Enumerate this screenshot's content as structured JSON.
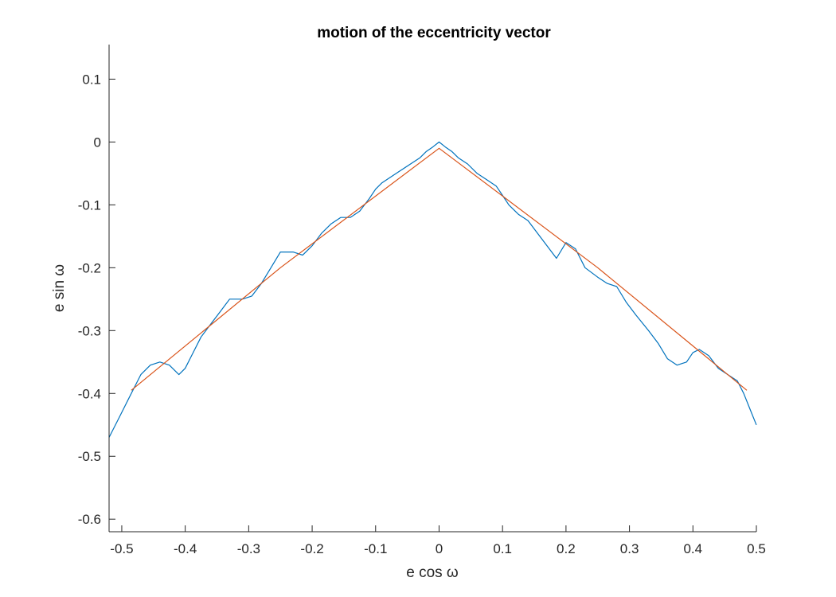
{
  "chart_data": {
    "type": "line",
    "title": "motion of the eccentricity vector",
    "xlabel": "e cos ω",
    "ylabel": "e sin ω",
    "xlim": [
      -0.52,
      0.5
    ],
    "ylim": [
      -0.62,
      0.155
    ],
    "xticks": [
      -0.5,
      -0.4,
      -0.3,
      -0.2,
      -0.1,
      0,
      0.1,
      0.2,
      0.3,
      0.4,
      0.5
    ],
    "xtick_labels": [
      "-0.5",
      "-0.4",
      "-0.3",
      "-0.2",
      "-0.1",
      "0",
      "0.1",
      "0.2",
      "0.3",
      "0.4",
      "0.5"
    ],
    "yticks": [
      0.1,
      0,
      -0.1,
      -0.2,
      -0.3,
      -0.4,
      -0.5,
      -0.6
    ],
    "ytick_labels": [
      "0.1",
      "0",
      "-0.1",
      "-0.2",
      "-0.3",
      "-0.4",
      "-0.5",
      "-0.6"
    ],
    "grid": false,
    "box": false,
    "series": [
      {
        "color": "#0072BD",
        "x": [
          -0.52,
          -0.505,
          -0.49,
          -0.48,
          -0.47,
          -0.455,
          -0.44,
          -0.425,
          -0.41,
          -0.4,
          -0.39,
          -0.375,
          -0.36,
          -0.345,
          -0.33,
          -0.31,
          -0.295,
          -0.28,
          -0.265,
          -0.25,
          -0.23,
          -0.215,
          -0.2,
          -0.185,
          -0.17,
          -0.155,
          -0.14,
          -0.125,
          -0.11,
          -0.1,
          -0.09,
          -0.075,
          -0.06,
          -0.045,
          -0.03,
          -0.02,
          -0.01,
          0,
          0.01,
          0.02,
          0.03,
          0.045,
          0.06,
          0.075,
          0.09,
          0.1,
          0.11,
          0.125,
          0.14,
          0.155,
          0.17,
          0.185,
          0.2,
          0.215,
          0.23,
          0.25,
          0.265,
          0.28,
          0.295,
          0.31,
          0.33,
          0.345,
          0.36,
          0.375,
          0.39,
          0.4,
          0.41,
          0.425,
          0.44,
          0.455,
          0.47,
          0.48,
          0.49,
          0.5
        ],
        "y": [
          -0.47,
          -0.44,
          -0.41,
          -0.39,
          -0.37,
          -0.355,
          -0.35,
          -0.355,
          -0.37,
          -0.36,
          -0.34,
          -0.31,
          -0.29,
          -0.27,
          -0.25,
          -0.25,
          -0.245,
          -0.225,
          -0.2,
          -0.175,
          -0.175,
          -0.18,
          -0.165,
          -0.145,
          -0.13,
          -0.12,
          -0.12,
          -0.11,
          -0.09,
          -0.075,
          -0.065,
          -0.055,
          -0.045,
          -0.035,
          -0.025,
          -0.015,
          -0.008,
          0,
          -0.008,
          -0.015,
          -0.025,
          -0.035,
          -0.05,
          -0.06,
          -0.07,
          -0.085,
          -0.1,
          -0.115,
          -0.125,
          -0.145,
          -0.165,
          -0.185,
          -0.16,
          -0.17,
          -0.2,
          -0.215,
          -0.225,
          -0.23,
          -0.255,
          -0.275,
          -0.3,
          -0.32,
          -0.345,
          -0.355,
          -0.35,
          -0.335,
          -0.33,
          -0.34,
          -0.36,
          -0.37,
          -0.38,
          -0.4,
          -0.425,
          -0.45
        ]
      },
      {
        "color": "#D95319",
        "x": [
          -0.485,
          -0.25,
          0,
          0.25,
          0.485
        ],
        "y": [
          -0.395,
          -0.2,
          -0.01,
          -0.2,
          -0.395
        ]
      }
    ]
  }
}
